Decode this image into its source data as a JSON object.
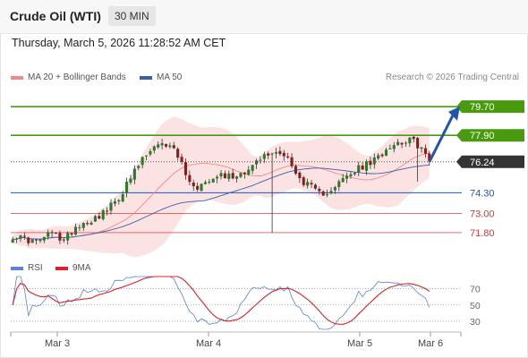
{
  "header": {
    "title": "Crude Oil (WTI)",
    "timeframe": "30 MIN"
  },
  "datetime": "Thursday, March 5, 2026 11:28:52 AM CET",
  "credit": "Research © 2026 Trading Central",
  "legend": {
    "main": [
      {
        "label": "MA 20 + Bollinger Bands",
        "color": "#f08a8a"
      },
      {
        "label": "MA 50",
        "color": "#3a5ea8"
      }
    ],
    "rsi": [
      {
        "label": "RSI",
        "color": "#5b84d8"
      },
      {
        "label": "9MA",
        "color": "#e0202a"
      }
    ]
  },
  "levels": [
    {
      "value": 79.7,
      "label": "79.70",
      "kind": "target",
      "color": "#4a9a10"
    },
    {
      "value": 77.9,
      "label": "77.90",
      "kind": "target",
      "color": "#4a9a10"
    },
    {
      "value": 76.24,
      "label": "76.24",
      "kind": "last",
      "color": "#333333"
    },
    {
      "value": 74.3,
      "label": "74.30",
      "kind": "pivot",
      "color": "#1a56c8"
    },
    {
      "value": 73.0,
      "label": "73.00",
      "kind": "support",
      "color": "#e03030"
    },
    {
      "value": 71.8,
      "label": "71.80",
      "kind": "support",
      "color": "#e03030"
    }
  ],
  "chart_data": {
    "type": "candlestick",
    "x_ticks": [
      "Mar 3",
      "Mar 4",
      "Mar 5",
      "Mar 6"
    ],
    "price_range": [
      70.5,
      81.0
    ],
    "close_anchors": [
      [
        0,
        71.6
      ],
      [
        6,
        71.2
      ],
      [
        10,
        71.8
      ],
      [
        13,
        71.3
      ],
      [
        16,
        72.2
      ],
      [
        20,
        72.6
      ],
      [
        24,
        73.2
      ],
      [
        27,
        74.0
      ],
      [
        30,
        75.2
      ],
      [
        33,
        76.4
      ],
      [
        36,
        77.1
      ],
      [
        40,
        77.4
      ],
      [
        42,
        76.6
      ],
      [
        44,
        75.6
      ],
      [
        46,
        74.6
      ],
      [
        48,
        74.8
      ],
      [
        50,
        75.2
      ],
      [
        52,
        75.5
      ],
      [
        56,
        75.3
      ],
      [
        60,
        75.8
      ],
      [
        64,
        76.6
      ],
      [
        68,
        76.9
      ],
      [
        70,
        76.5
      ],
      [
        72,
        75.4
      ],
      [
        76,
        74.6
      ],
      [
        78,
        74.2
      ],
      [
        80,
        74.4
      ],
      [
        84,
        75.1
      ],
      [
        88,
        75.8
      ],
      [
        92,
        76.3
      ],
      [
        96,
        77.3
      ],
      [
        100,
        77.6
      ],
      [
        102,
        77.5
      ],
      [
        104,
        77.1
      ],
      [
        106,
        76.2
      ]
    ],
    "rsi": {
      "levels": [
        70,
        50,
        30
      ],
      "range": [
        20,
        85
      ]
    }
  }
}
